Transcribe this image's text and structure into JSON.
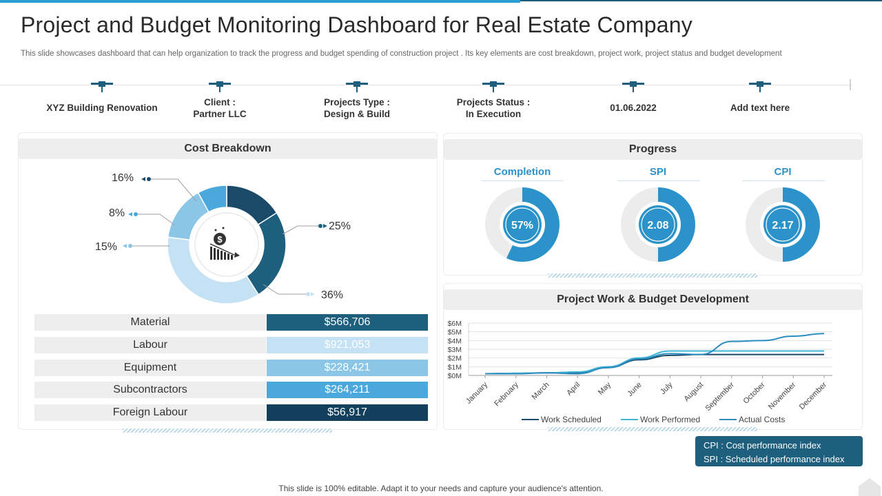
{
  "title": "Project and Budget Monitoring Dashboard for Real Estate Company",
  "subtitle": "This slide showcases dashboard that can help organization to track the progress and budget spending of construction project . Its key elements are cost breakdown, project work, project status and budget development",
  "milestones": [
    {
      "label": "XYZ Building Renovation"
    },
    {
      "label": "Client :\nPartner LLC"
    },
    {
      "label": "Projects Type :\nDesign & Build"
    },
    {
      "label": "Projects Status :\nIn Execution"
    },
    {
      "label": "01.06.2022"
    },
    {
      "label": "Add text here"
    }
  ],
  "cost_breakdown": {
    "title": "Cost Breakdown",
    "rows": [
      {
        "name": "Material",
        "value": "$566,706"
      },
      {
        "name": "Labour",
        "value": "$921,053"
      },
      {
        "name": "Equipment",
        "value": "$228,421"
      },
      {
        "name": "Subcontractors",
        "value": "$264,211"
      },
      {
        "name": "Foreign Labour",
        "value": "$56,917"
      }
    ]
  },
  "progress": {
    "title": "Progress",
    "metrics": [
      {
        "name": "Completion",
        "display": "57%",
        "fraction": 0.57
      },
      {
        "name": "SPI",
        "display": "2.08",
        "fraction": 0.5
      },
      {
        "name": "CPI",
        "display": "2.17",
        "fraction": 0.5
      }
    ]
  },
  "legend_box": {
    "line1": "CPI : Cost performance  index",
    "line2": "SPI : Scheduled performance  index"
  },
  "footer": "This slide is 100% editable. Adapt it to your needs and capture your audience's attention.",
  "colors": {
    "dark_navy": "#1b4a68",
    "mid_blue": "#2b93c9",
    "light_blue": "#8cc6e7",
    "pale_blue": "#c4e2f4",
    "sky_blue": "#4aa8dc",
    "deep_navy": "#123f5c"
  },
  "chart_data": [
    {
      "type": "pie",
      "title": "Cost Breakdown",
      "slices": [
        {
          "label": "16%",
          "value": 16,
          "color": "#1b4a68"
        },
        {
          "label": "25%",
          "value": 25,
          "color": "#1d5f7d"
        },
        {
          "label": "36%",
          "value": 36,
          "color": "#c4e2f4"
        },
        {
          "label": "15%",
          "value": 15,
          "color": "#8cc6e7"
        },
        {
          "label": "8%",
          "value": 8,
          "color": "#4aa8dc"
        }
      ]
    },
    {
      "type": "line",
      "title": "Project Work & Budget Development",
      "categories": [
        "January",
        "February",
        "March",
        "April",
        "May",
        "June",
        "July",
        "August",
        "September",
        "October",
        "November",
        "December"
      ],
      "yticks": [
        "$0M",
        "$1M",
        "$2M",
        "$3M",
        "$4M",
        "$5M",
        "$6M"
      ],
      "ylim": [
        0,
        6
      ],
      "series": [
        {
          "name": "Work Scheduled",
          "color": "#1b4a68",
          "values": [
            0.2,
            0.25,
            0.3,
            0.35,
            0.9,
            1.8,
            2.3,
            2.4,
            2.4,
            2.4,
            2.4,
            2.4
          ]
        },
        {
          "name": "Work Performed",
          "color": "#3fb6d6",
          "values": [
            0.2,
            0.25,
            0.3,
            0.4,
            1.0,
            2.0,
            2.8,
            2.8,
            2.8,
            2.8,
            2.8,
            2.8
          ]
        },
        {
          "name": "Actual Costs",
          "color": "#2b8cc2",
          "values": [
            0.2,
            0.2,
            0.3,
            0.2,
            0.9,
            1.9,
            2.5,
            2.4,
            3.9,
            4.0,
            4.5,
            4.8
          ]
        }
      ]
    }
  ]
}
